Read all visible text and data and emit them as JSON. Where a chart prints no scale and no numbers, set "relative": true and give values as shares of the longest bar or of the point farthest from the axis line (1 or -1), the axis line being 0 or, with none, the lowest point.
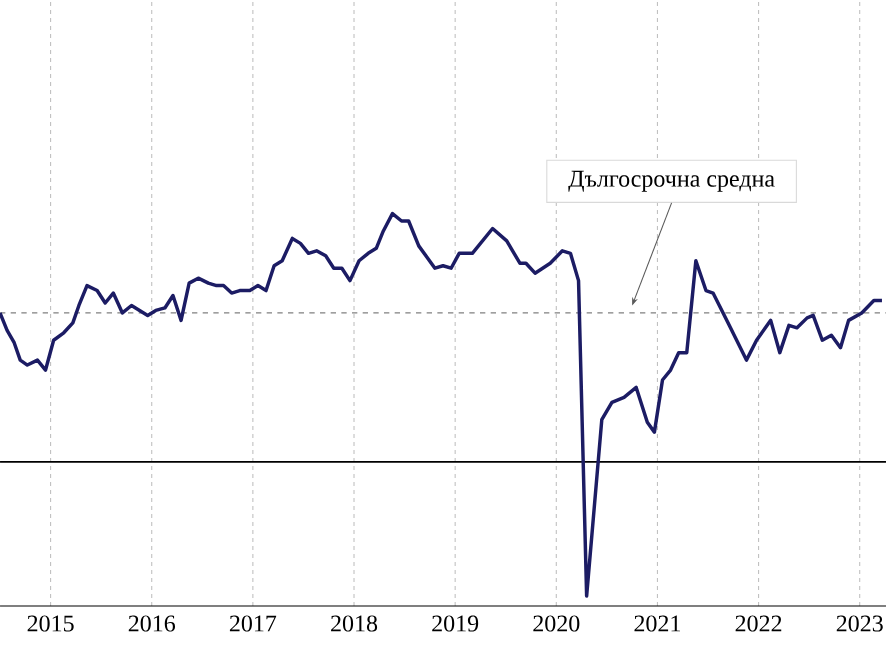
{
  "chart_data": {
    "type": "line",
    "relative": true,
    "color": "#1c1c64",
    "x": [
      2014.5,
      2014.57,
      2014.64,
      2014.7,
      2014.77,
      2014.87,
      2014.95,
      2015.03,
      2015.13,
      2015.22,
      2015.28,
      2015.36,
      2015.46,
      2015.54,
      2015.62,
      2015.71,
      2015.8,
      2015.88,
      2015.96,
      2016.04,
      2016.13,
      2016.21,
      2016.29,
      2016.37,
      2016.46,
      2016.56,
      2016.64,
      2016.71,
      2016.79,
      2016.87,
      2016.97,
      2017.05,
      2017.13,
      2017.21,
      2017.29,
      2017.39,
      2017.47,
      2017.55,
      2017.63,
      2017.72,
      2017.8,
      2017.88,
      2017.96,
      2018.05,
      2018.14,
      2018.22,
      2018.29,
      2018.38,
      2018.47,
      2018.54,
      2018.64,
      2018.8,
      2018.88,
      2018.96,
      2019.04,
      2019.17,
      2019.37,
      2019.51,
      2019.64,
      2019.7,
      2019.79,
      2019.94,
      2020.06,
      2020.14,
      2020.22,
      2020.3,
      2020.45,
      2020.55,
      2020.67,
      2020.79,
      2020.9,
      2020.97,
      2021.05,
      2021.13,
      2021.21,
      2021.29,
      2021.38,
      2021.48,
      2021.55,
      2021.71,
      2021.88,
      2021.98,
      2022.12,
      2022.21,
      2022.3,
      2022.38,
      2022.48,
      2022.54,
      2022.63,
      2022.72,
      2022.81,
      2022.89,
      2023.02,
      2023.14,
      2023.22
    ],
    "values": [
      0.6,
      0.53,
      0.48,
      0.41,
      0.39,
      0.41,
      0.37,
      0.49,
      0.52,
      0.56,
      0.63,
      0.71,
      0.69,
      0.64,
      0.68,
      0.6,
      0.63,
      0.61,
      0.59,
      0.61,
      0.62,
      0.67,
      0.57,
      0.72,
      0.74,
      0.72,
      0.71,
      0.71,
      0.68,
      0.69,
      0.69,
      0.71,
      0.69,
      0.79,
      0.81,
      0.9,
      0.88,
      0.84,
      0.85,
      0.83,
      0.78,
      0.78,
      0.73,
      0.81,
      0.84,
      0.86,
      0.93,
      1.0,
      0.97,
      0.97,
      0.87,
      0.78,
      0.79,
      0.78,
      0.84,
      0.84,
      0.94,
      0.89,
      0.8,
      0.8,
      0.76,
      0.8,
      0.85,
      0.84,
      0.73,
      -0.54,
      0.17,
      0.24,
      0.26,
      0.3,
      0.16,
      0.12,
      0.33,
      0.37,
      0.44,
      0.44,
      0.81,
      0.69,
      0.68,
      0.55,
      0.41,
      0.49,
      0.57,
      0.44,
      0.55,
      0.54,
      0.58,
      0.59,
      0.49,
      0.51,
      0.46,
      0.57,
      0.6,
      0.65,
      0.65
    ],
    "xlim": [
      2014.5,
      2023.26
    ],
    "xticks": [
      2015,
      2016,
      2017,
      2018,
      2019,
      2020,
      2021,
      2022,
      2023
    ],
    "grid": "x",
    "ref_lines": [
      {
        "axis": "y",
        "value": 0.6,
        "color": "#808080",
        "line_style": "dashed"
      }
    ],
    "annotations": [
      {
        "text": "Дългосрочна средна",
        "x": 2020.75,
        "y": 0.6
      }
    ]
  }
}
